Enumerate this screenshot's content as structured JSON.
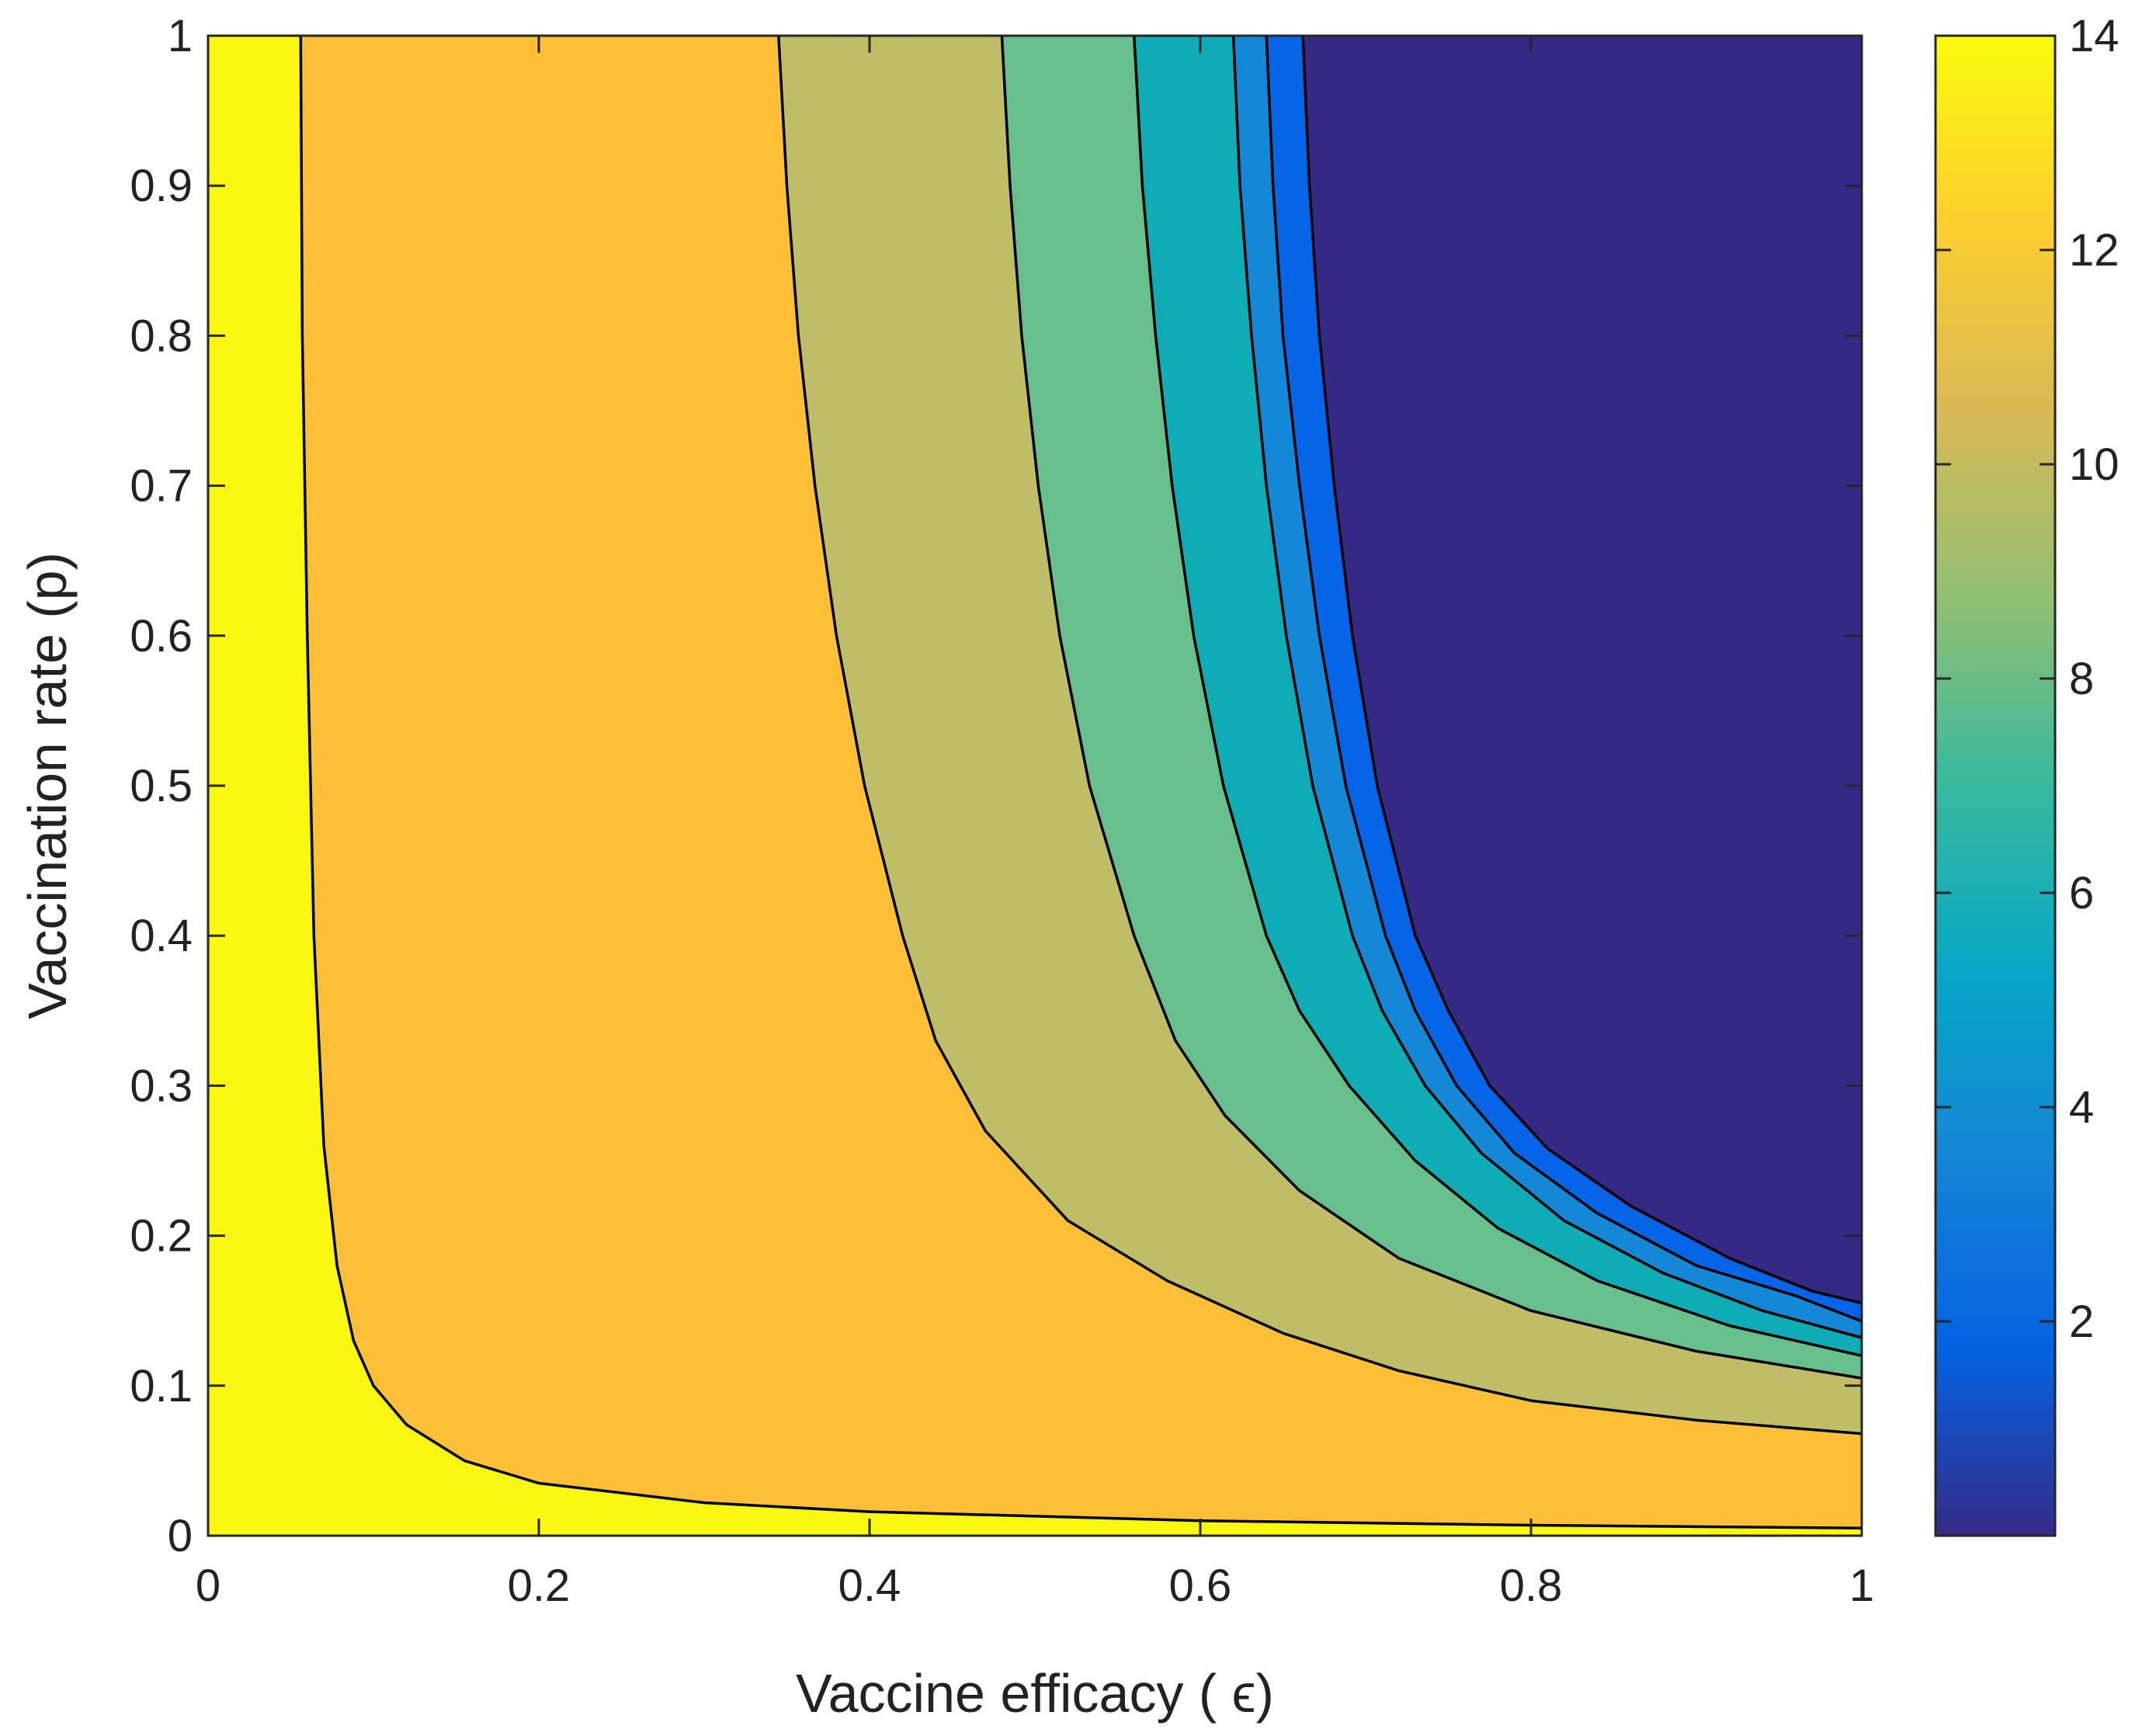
{
  "chart_data": {
    "type": "filled_contour",
    "title": "",
    "xlabel": "Vaccine efficacy ( ϵ)",
    "ylabel": "Vaccination rate (p)",
    "xlim": [
      0,
      1
    ],
    "ylim": [
      0,
      1
    ],
    "x_ticks": [
      0,
      0.2,
      0.4,
      0.6,
      0.8,
      1
    ],
    "x_tick_labels": [
      "0",
      "0.2",
      "0.4",
      "0.6",
      "0.8",
      "1"
    ],
    "y_ticks": [
      0,
      0.1,
      0.2,
      0.3,
      0.4,
      0.5,
      0.6,
      0.7,
      0.8,
      0.9,
      1
    ],
    "y_tick_labels": [
      "0",
      "0.1",
      "0.2",
      "0.3",
      "0.4",
      "0.5",
      "0.6",
      "0.7",
      "0.8",
      "0.9",
      "1"
    ],
    "colorbar": {
      "range": [
        0,
        14
      ],
      "ticks": [
        2,
        4,
        6,
        8,
        10,
        12,
        14
      ],
      "tick_labels": [
        "2",
        "4",
        "6",
        "8",
        "10",
        "12",
        "14"
      ],
      "colors": [
        "#352a87",
        "#0363e1",
        "#1485d4",
        "#06a7c6",
        "#38b99e",
        "#92bf73",
        "#d9ba56",
        "#fcce2e",
        "#f9fb0e"
      ]
    },
    "region_colors": [
      "#f9f710",
      "#fdbf38",
      "#bfbd66",
      "#67bf8d",
      "#10acb6",
      "#1488d6",
      "#0665e6",
      "#342985"
    ],
    "contour_lines": [
      {
        "name": "contour-1",
        "points": [
          [
            0.056,
            1.0
          ],
          [
            0.057,
            0.8
          ],
          [
            0.06,
            0.6
          ],
          [
            0.064,
            0.4
          ],
          [
            0.07,
            0.26
          ],
          [
            0.078,
            0.18
          ],
          [
            0.088,
            0.13
          ],
          [
            0.1,
            0.1
          ],
          [
            0.12,
            0.074
          ],
          [
            0.155,
            0.05
          ],
          [
            0.2,
            0.035
          ],
          [
            0.3,
            0.022
          ],
          [
            0.4,
            0.016
          ],
          [
            0.6,
            0.01
          ],
          [
            0.8,
            0.007
          ],
          [
            1.0,
            0.005
          ]
        ]
      },
      {
        "name": "contour-2",
        "points": [
          [
            0.345,
            1.0
          ],
          [
            0.35,
            0.9
          ],
          [
            0.357,
            0.8
          ],
          [
            0.367,
            0.7
          ],
          [
            0.38,
            0.6
          ],
          [
            0.397,
            0.5
          ],
          [
            0.42,
            0.4
          ],
          [
            0.44,
            0.33
          ],
          [
            0.47,
            0.27
          ],
          [
            0.52,
            0.21
          ],
          [
            0.58,
            0.17
          ],
          [
            0.65,
            0.135
          ],
          [
            0.72,
            0.11
          ],
          [
            0.8,
            0.09
          ],
          [
            0.9,
            0.077
          ],
          [
            1.0,
            0.068
          ]
        ]
      },
      {
        "name": "contour-3",
        "points": [
          [
            0.48,
            1.0
          ],
          [
            0.485,
            0.9
          ],
          [
            0.492,
            0.8
          ],
          [
            0.502,
            0.7
          ],
          [
            0.515,
            0.6
          ],
          [
            0.533,
            0.5
          ],
          [
            0.56,
            0.4
          ],
          [
            0.585,
            0.33
          ],
          [
            0.615,
            0.28
          ],
          [
            0.66,
            0.23
          ],
          [
            0.72,
            0.185
          ],
          [
            0.8,
            0.15
          ],
          [
            0.9,
            0.123
          ],
          [
            1.0,
            0.105
          ]
        ]
      },
      {
        "name": "contour-4",
        "points": [
          [
            0.56,
            1.0
          ],
          [
            0.565,
            0.9
          ],
          [
            0.573,
            0.8
          ],
          [
            0.583,
            0.7
          ],
          [
            0.596,
            0.6
          ],
          [
            0.614,
            0.5
          ],
          [
            0.64,
            0.4
          ],
          [
            0.66,
            0.35
          ],
          [
            0.69,
            0.3
          ],
          [
            0.73,
            0.25
          ],
          [
            0.78,
            0.205
          ],
          [
            0.84,
            0.17
          ],
          [
            0.92,
            0.14
          ],
          [
            1.0,
            0.12
          ]
        ]
      },
      {
        "name": "contour-5",
        "points": [
          [
            0.62,
            1.0
          ],
          [
            0.624,
            0.9
          ],
          [
            0.631,
            0.8
          ],
          [
            0.64,
            0.7
          ],
          [
            0.652,
            0.6
          ],
          [
            0.668,
            0.5
          ],
          [
            0.692,
            0.4
          ],
          [
            0.71,
            0.35
          ],
          [
            0.736,
            0.3
          ],
          [
            0.77,
            0.255
          ],
          [
            0.82,
            0.21
          ],
          [
            0.88,
            0.175
          ],
          [
            0.94,
            0.15
          ],
          [
            1.0,
            0.132
          ]
        ]
      },
      {
        "name": "contour-6",
        "points": [
          [
            0.64,
            1.0
          ],
          [
            0.644,
            0.9
          ],
          [
            0.65,
            0.8
          ],
          [
            0.66,
            0.7
          ],
          [
            0.672,
            0.6
          ],
          [
            0.688,
            0.5
          ],
          [
            0.712,
            0.4
          ],
          [
            0.73,
            0.35
          ],
          [
            0.755,
            0.3
          ],
          [
            0.79,
            0.255
          ],
          [
            0.84,
            0.215
          ],
          [
            0.9,
            0.18
          ],
          [
            0.96,
            0.16
          ],
          [
            1.0,
            0.143
          ]
        ]
      },
      {
        "name": "contour-7",
        "points": [
          [
            0.662,
            1.0
          ],
          [
            0.666,
            0.9
          ],
          [
            0.672,
            0.8
          ],
          [
            0.681,
            0.7
          ],
          [
            0.692,
            0.6
          ],
          [
            0.707,
            0.5
          ],
          [
            0.73,
            0.4
          ],
          [
            0.75,
            0.35
          ],
          [
            0.775,
            0.3
          ],
          [
            0.81,
            0.258
          ],
          [
            0.86,
            0.22
          ],
          [
            0.92,
            0.185
          ],
          [
            0.97,
            0.163
          ],
          [
            1.0,
            0.155
          ]
        ]
      }
    ]
  }
}
